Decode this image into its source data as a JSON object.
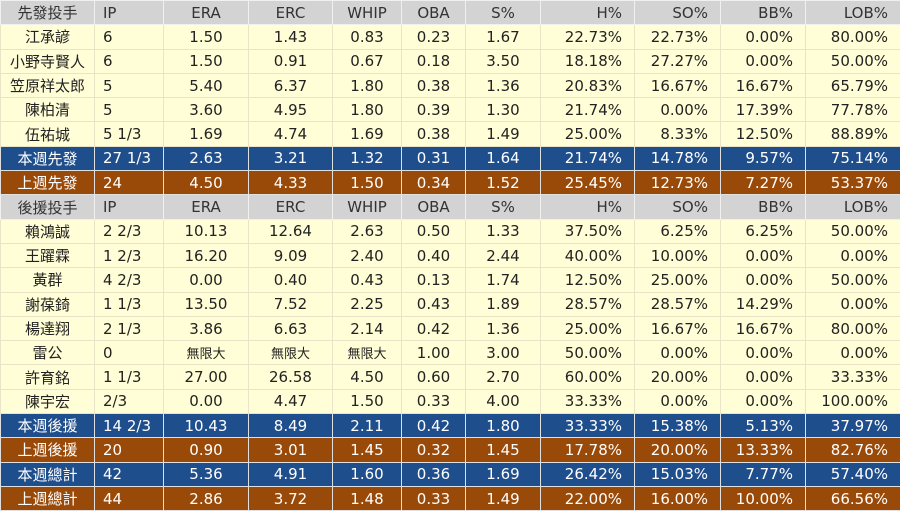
{
  "columns": [
    "IP",
    "ERA",
    "ERC",
    "WHIP",
    "OBA",
    "S%",
    "H%",
    "SO%",
    "BB%",
    "LOB%"
  ],
  "colors": {
    "header": "#d3d3d3",
    "body": "#fffed6",
    "this_week": "#1f4e8c",
    "last_week": "#9a4a08"
  },
  "sections": [
    {
      "title": "先發投手",
      "rows": [
        [
          "江承諺",
          "6",
          "1.50",
          "1.43",
          "0.83",
          "0.23",
          "1.67",
          "22.73%",
          "22.73%",
          "0.00%",
          "80.00%"
        ],
        [
          "小野寺賢人",
          "6",
          "1.50",
          "0.91",
          "0.67",
          "0.18",
          "3.50",
          "18.18%",
          "27.27%",
          "0.00%",
          "50.00%"
        ],
        [
          "笠原祥太郎",
          "5",
          "5.40",
          "6.37",
          "1.80",
          "0.38",
          "1.36",
          "20.83%",
          "16.67%",
          "16.67%",
          "65.79%"
        ],
        [
          "陳柏清",
          "5",
          "3.60",
          "4.95",
          "1.80",
          "0.39",
          "1.30",
          "21.74%",
          "0.00%",
          "17.39%",
          "77.78%"
        ],
        [
          "伍祐城",
          "5 1/3",
          "1.69",
          "4.74",
          "1.69",
          "0.38",
          "1.49",
          "25.00%",
          "8.33%",
          "12.50%",
          "88.89%"
        ]
      ],
      "totals": [
        {
          "style": "blue",
          "cells": [
            "本週先發",
            "27 1/3",
            "2.63",
            "3.21",
            "1.32",
            "0.31",
            "1.64",
            "21.74%",
            "14.78%",
            "9.57%",
            "75.14%"
          ]
        },
        {
          "style": "brown",
          "cells": [
            "上週先發",
            "24",
            "4.50",
            "4.33",
            "1.50",
            "0.34",
            "1.52",
            "25.45%",
            "12.73%",
            "7.27%",
            "53.37%"
          ]
        }
      ]
    },
    {
      "title": "後援投手",
      "rows": [
        [
          "賴鴻誠",
          "2 2/3",
          "10.13",
          "12.64",
          "2.63",
          "0.50",
          "1.33",
          "37.50%",
          "6.25%",
          "6.25%",
          "50.00%"
        ],
        [
          "王躍霖",
          "1 2/3",
          "16.20",
          "9.09",
          "2.40",
          "0.40",
          "2.44",
          "40.00%",
          "10.00%",
          "0.00%",
          "0.00%"
        ],
        [
          "黃群",
          "4 2/3",
          "0.00",
          "0.40",
          "0.43",
          "0.13",
          "1.74",
          "12.50%",
          "25.00%",
          "0.00%",
          "50.00%"
        ],
        [
          "謝葆錡",
          "1 1/3",
          "13.50",
          "7.52",
          "2.25",
          "0.43",
          "1.89",
          "28.57%",
          "28.57%",
          "14.29%",
          "0.00%"
        ],
        [
          "楊達翔",
          "2 1/3",
          "3.86",
          "6.63",
          "2.14",
          "0.42",
          "1.36",
          "25.00%",
          "16.67%",
          "16.67%",
          "80.00%"
        ],
        [
          "雷公",
          "0",
          "無限大",
          "無限大",
          "無限大",
          "1.00",
          "3.00",
          "50.00%",
          "0.00%",
          "0.00%",
          "0.00%"
        ],
        [
          "許育銘",
          "1 1/3",
          "27.00",
          "26.58",
          "4.50",
          "0.60",
          "2.70",
          "60.00%",
          "20.00%",
          "0.00%",
          "33.33%"
        ],
        [
          "陳宇宏",
          "2/3",
          "0.00",
          "4.47",
          "1.50",
          "0.33",
          "4.00",
          "33.33%",
          "0.00%",
          "0.00%",
          "100.00%"
        ]
      ],
      "totals": [
        {
          "style": "blue",
          "cells": [
            "本週後援",
            "14 2/3",
            "10.43",
            "8.49",
            "2.11",
            "0.42",
            "1.80",
            "33.33%",
            "15.38%",
            "5.13%",
            "37.97%"
          ]
        },
        {
          "style": "brown",
          "cells": [
            "上週後援",
            "20",
            "0.90",
            "3.01",
            "1.45",
            "0.32",
            "1.45",
            "17.78%",
            "20.00%",
            "13.33%",
            "82.76%"
          ]
        },
        {
          "style": "blue",
          "cells": [
            "本週總計",
            "42",
            "5.36",
            "4.91",
            "1.60",
            "0.36",
            "1.69",
            "26.42%",
            "15.03%",
            "7.77%",
            "57.40%"
          ]
        },
        {
          "style": "brown",
          "cells": [
            "上週總計",
            "44",
            "2.86",
            "3.72",
            "1.48",
            "0.33",
            "1.49",
            "22.00%",
            "16.00%",
            "10.00%",
            "66.56%"
          ]
        }
      ]
    }
  ]
}
